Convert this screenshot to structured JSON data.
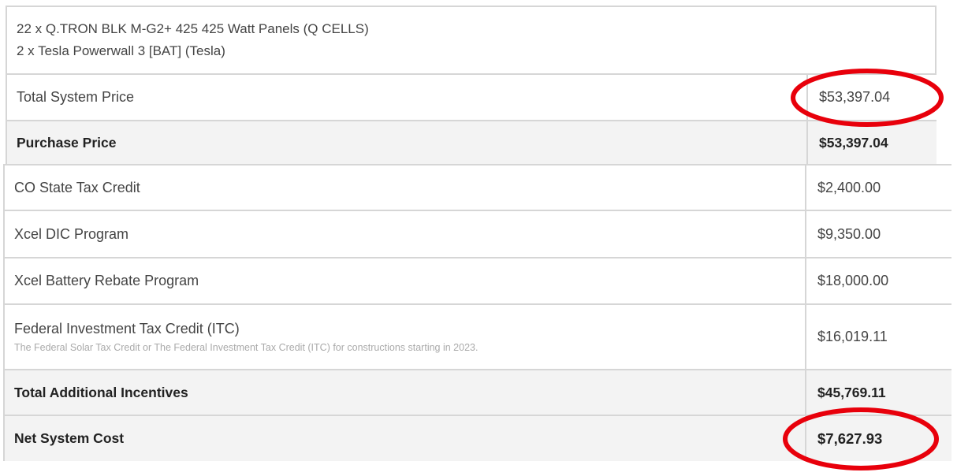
{
  "system": {
    "items": [
      "22 x Q.TRON BLK M-G2+ 425 425 Watt Panels (Q CELLS)",
      "2 x Tesla Powerwall 3 [BAT] (Tesla)"
    ],
    "total_system_price": {
      "label": "Total System Price",
      "value": "$53,397.04"
    },
    "purchase_price": {
      "label": "Purchase Price",
      "value": "$53,397.04"
    }
  },
  "incentives": [
    {
      "label": "CO State Tax Credit",
      "value": "$2,400.00"
    },
    {
      "label": "Xcel DIC Program",
      "value": "$9,350.00"
    },
    {
      "label": "Xcel Battery Rebate Program",
      "value": "$18,000.00"
    },
    {
      "label": "Federal Investment Tax Credit (ITC)",
      "description": "The Federal Solar Tax Credit or The Federal Investment Tax Credit (ITC) for constructions starting in 2023.",
      "value": "$16,019.11"
    }
  ],
  "total_additional_incentives": {
    "label": "Total Additional Incentives",
    "value": "$45,769.11"
  },
  "net_system_cost": {
    "label": "Net System Cost",
    "value": "$7,627.93"
  },
  "annotation_color": "#e8000b"
}
